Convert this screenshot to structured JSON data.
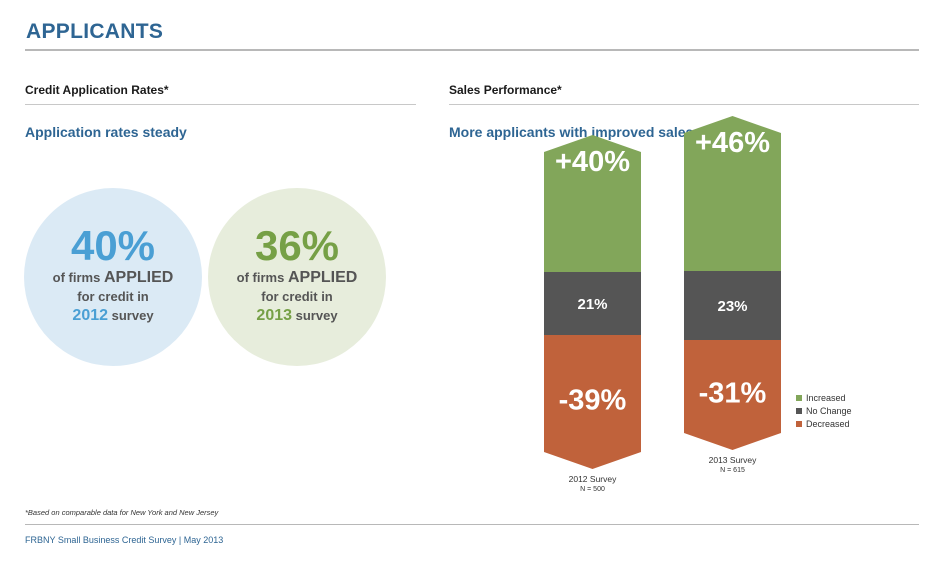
{
  "header": {
    "title": "APPLICANTS"
  },
  "left_panel": {
    "heading": "Credit Application Rates*",
    "subheading": "Application rates steady",
    "circles": [
      {
        "pct": "40%",
        "line1_prefix": "of firms ",
        "line1_emph": "APPLIED",
        "line2": "for credit in",
        "year": "2012",
        "suffix": " survey",
        "accent": "#4a9fd4",
        "fill": "#dbeaf5"
      },
      {
        "pct": "36%",
        "line1_prefix": "of firms ",
        "line1_emph": "APPLIED",
        "line2": "for credit in",
        "year": "2013",
        "suffix": " survey",
        "accent": "#76a046",
        "fill": "#e7eddc"
      }
    ]
  },
  "right_panel": {
    "heading": "Sales Performance*",
    "subheading": "More applicants with improved sales"
  },
  "chart_data": {
    "type": "bar",
    "stacked": true,
    "categories": [
      "2012 Survey",
      "2013 Survey"
    ],
    "category_notes": [
      "N = 500",
      "N = 615"
    ],
    "series": [
      {
        "name": "Increased",
        "values": [
          40,
          46
        ],
        "labels": [
          "+40%",
          "+46%"
        ],
        "color": "#82a65a"
      },
      {
        "name": "No Change",
        "values": [
          21,
          23
        ],
        "labels": [
          "21%",
          "23%"
        ],
        "color": "#555555"
      },
      {
        "name": "Decreased",
        "values": [
          39,
          31
        ],
        "labels": [
          "-39%",
          "-31%"
        ],
        "color": "#c0623b"
      }
    ],
    "legend_position": "right"
  },
  "footnote": "*Based on comparable data for New York and New Jersey",
  "footer": "FRBNY Small Business Credit Survey  |  May 2013"
}
